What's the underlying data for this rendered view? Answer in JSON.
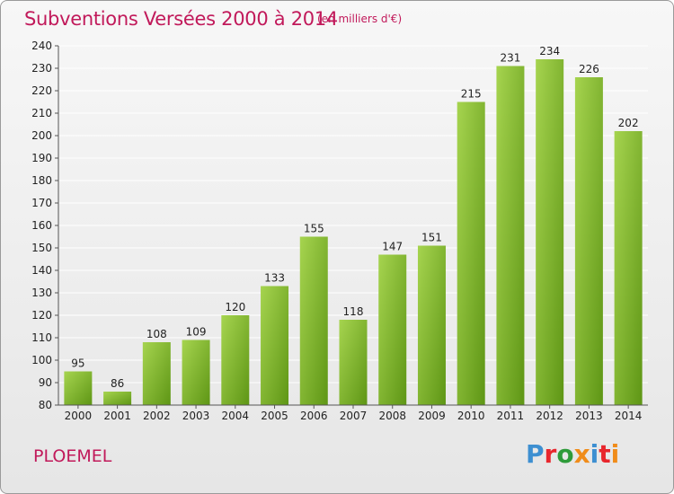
{
  "header": {
    "title": "Subventions Versées 2000 à 2014",
    "subtitle": "(en milliers d'€)"
  },
  "footer": {
    "city": "PLOEMEL",
    "logo": "Proxiti",
    "logo_letter_colors": [
      "#3d8fd1",
      "#e8262d",
      "#2e9b3a",
      "#f08c1a",
      "#3d8fd1",
      "#e8262d",
      "#f08c1a"
    ]
  },
  "colors": {
    "bar_top": "#a6d44f",
    "bar_bottom": "#5e9615",
    "grid": "#ffffff",
    "axis_text": "#222222",
    "accent": "#c1195a"
  },
  "chart_data": {
    "type": "bar",
    "title": "Subventions Versées 2000 à 2014",
    "subtitle": "(en milliers d'€)",
    "categories": [
      "2000",
      "2001",
      "2002",
      "2003",
      "2004",
      "2005",
      "2006",
      "2007",
      "2008",
      "2009",
      "2010",
      "2011",
      "2012",
      "2013",
      "2014"
    ],
    "values": [
      95,
      86,
      108,
      109,
      120,
      133,
      155,
      118,
      147,
      151,
      215,
      231,
      234,
      226,
      202
    ],
    "xlabel": "",
    "ylabel": "",
    "ylim": [
      80,
      240
    ],
    "yticks": [
      80,
      90,
      100,
      110,
      120,
      130,
      140,
      150,
      160,
      170,
      180,
      190,
      200,
      210,
      220,
      230,
      240
    ],
    "grid": true,
    "data_labels": true
  }
}
